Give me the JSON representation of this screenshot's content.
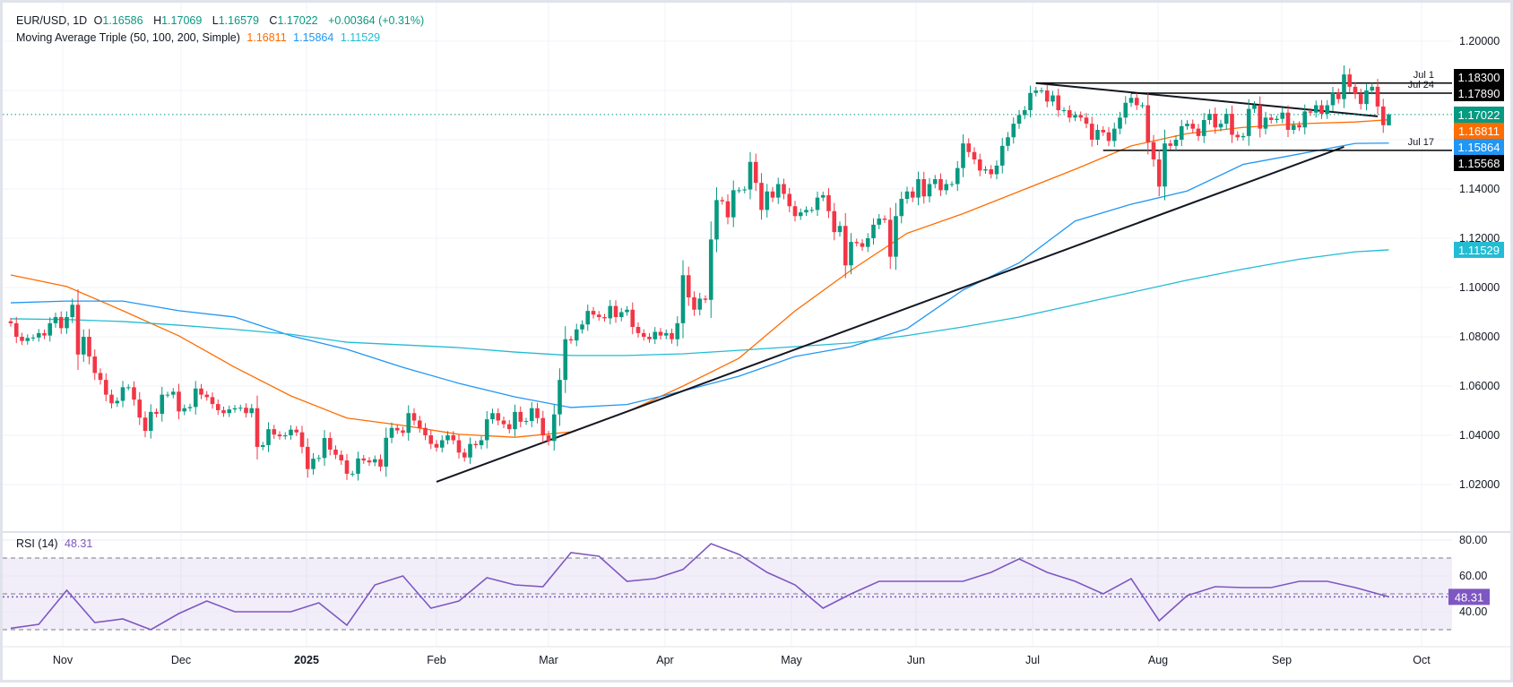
{
  "header": {
    "symbol": "EUR/USD, 1D",
    "o_label": "O",
    "o": "1.16586",
    "h_label": "H",
    "h": "1.17069",
    "l_label": "L",
    "l": "1.16579",
    "c_label": "C",
    "c": "1.17022",
    "change": "+0.00364 (+0.31%)"
  },
  "ma_legend": {
    "label": "Moving Average Triple (50, 100, 200, Simple)",
    "v50": "1.16811",
    "v100": "1.15864",
    "v200": "1.11529"
  },
  "rsi_legend": {
    "label": "RSI (14)",
    "value": "48.31"
  },
  "colors": {
    "up": "#089981",
    "down": "#f23645",
    "ma50": "#ff6d00",
    "ma100": "#2196f3",
    "ma200": "#22bcd4",
    "rsi": "#7e57c2",
    "trendline": "#131722",
    "level": "#000000"
  },
  "chart_data": [
    {
      "type": "candlestick",
      "title": "EUR/USD, 1D",
      "ylim": [
        1.0,
        1.217
      ],
      "grid": true,
      "y_ticks": [
        "1.20000",
        "1.14000",
        "1.12000",
        "1.10000",
        "1.08000",
        "1.06000",
        "1.04000",
        "1.02000"
      ],
      "x_ticks": [
        "Nov",
        "Dec",
        "2025",
        "Feb",
        "Mar",
        "Apr",
        "May",
        "Jun",
        "Jul",
        "Aug",
        "Sep",
        "Oct"
      ],
      "last": {
        "open": 1.16586,
        "high": 1.17069,
        "low": 1.16579,
        "close": 1.17022,
        "badge": "1.17022"
      },
      "close": [
        1.0855,
        1.08,
        1.0783,
        1.0795,
        1.0797,
        1.0815,
        1.0805,
        1.0855,
        1.088,
        1.0835,
        1.088,
        1.093,
        1.0728,
        1.08,
        1.072,
        1.0653,
        1.0625,
        1.0565,
        1.053,
        1.054,
        1.0595,
        1.0595,
        1.0545,
        1.0472,
        1.0418,
        1.0495,
        1.0487,
        1.0565,
        1.0565,
        1.0577,
        1.0497,
        1.051,
        1.0515,
        1.059,
        1.0565,
        1.0555,
        1.0527,
        1.0502,
        1.049,
        1.0505,
        1.051,
        1.0512,
        1.049,
        1.051,
        1.0353,
        1.036,
        1.0425,
        1.0403,
        1.0396,
        1.04,
        1.0423,
        1.0412,
        1.0353,
        1.0263,
        1.0305,
        1.0308,
        1.0389,
        1.0342,
        1.0321,
        1.0298,
        1.0244,
        1.0244,
        1.0306,
        1.0298,
        1.029,
        1.0303,
        1.0273,
        1.039,
        1.043,
        1.042,
        1.041,
        1.049,
        1.046,
        1.043,
        1.04,
        1.0365,
        1.035,
        1.038,
        1.04,
        1.038,
        1.033,
        1.031,
        1.0365,
        1.036,
        1.038,
        1.0465,
        1.049,
        1.046,
        1.0445,
        1.0425,
        1.0495,
        1.0455,
        1.0458,
        1.051,
        1.047,
        1.04,
        1.0377,
        1.0485,
        1.0625,
        1.079,
        1.0785,
        1.083,
        1.085,
        1.0905,
        1.089,
        1.088,
        1.0875,
        1.0925,
        1.088,
        1.09,
        1.091,
        1.084,
        1.0815,
        1.08,
        1.079,
        1.082,
        1.0805,
        1.0815,
        1.079,
        1.0855,
        1.105,
        1.096,
        1.091,
        1.0955,
        1.095,
        1.1195,
        1.1355,
        1.135,
        1.1285,
        1.1395,
        1.1395,
        1.1398,
        1.151,
        1.1425,
        1.1315,
        1.139,
        1.1365,
        1.142,
        1.138,
        1.133,
        1.129,
        1.1305,
        1.1315,
        1.1315,
        1.1365,
        1.1375,
        1.131,
        1.1225,
        1.125,
        1.109,
        1.1185,
        1.118,
        1.1165,
        1.12,
        1.1255,
        1.128,
        1.1275,
        1.1125,
        1.129,
        1.136,
        1.139,
        1.1365,
        1.144,
        1.137,
        1.142,
        1.144,
        1.1395,
        1.142,
        1.142,
        1.1485,
        1.1585,
        1.155,
        1.152,
        1.1475,
        1.148,
        1.146,
        1.1495,
        1.1575,
        1.161,
        1.1665,
        1.17,
        1.172,
        1.179,
        1.18,
        1.18,
        1.1755,
        1.178,
        1.172,
        1.172,
        1.169,
        1.17,
        1.169,
        1.1665,
        1.16,
        1.164,
        1.163,
        1.1595,
        1.1645,
        1.169,
        1.175,
        1.177,
        1.174,
        1.174,
        1.159,
        1.152,
        1.141,
        1.1585,
        1.1575,
        1.16,
        1.1655,
        1.1665,
        1.1645,
        1.1615,
        1.168,
        1.1705,
        1.165,
        1.1665,
        1.1705,
        1.162,
        1.161,
        1.1615,
        1.1725,
        1.174,
        1.1645,
        1.169,
        1.168,
        1.1685,
        1.171,
        1.164,
        1.166,
        1.165,
        1.1715,
        1.171,
        1.174,
        1.1705,
        1.174,
        1.179,
        1.1765,
        1.1865,
        1.1815,
        1.1785,
        1.1745,
        1.18,
        1.1815,
        1.1735,
        1.1659,
        1.17022
      ],
      "moving_averages": [
        {
          "name": "MA 50",
          "badge": "1.16811",
          "values": [
            1.1051,
            1.1004,
            1.0906,
            1.0804,
            1.0676,
            1.056,
            1.047,
            1.044,
            1.0404,
            1.0392,
            1.0414,
            1.0495,
            1.06,
            1.0713,
            1.0905,
            1.107,
            1.122,
            1.13,
            1.139,
            1.148,
            1.1575,
            1.1625,
            1.165,
            1.1665,
            1.1672,
            1.16811
          ]
        },
        {
          "name": "MA 100",
          "badge": "1.15864",
          "values": [
            1.0938,
            1.0945,
            1.0945,
            1.0906,
            1.088,
            1.0804,
            1.0749,
            1.0676,
            1.0611,
            1.0556,
            1.0513,
            1.0525,
            1.058,
            1.064,
            1.072,
            1.076,
            1.0833,
            1.099,
            1.11,
            1.127,
            1.1338,
            1.1392,
            1.15,
            1.1542,
            1.1585,
            1.15864
          ]
        },
        {
          "name": "MA 200",
          "badge": "1.11529",
          "values": [
            1.0873,
            1.087,
            1.0862,
            1.0847,
            1.083,
            1.081,
            1.0778,
            1.0767,
            1.0756,
            1.0738,
            1.0724,
            1.0724,
            1.0731,
            1.0745,
            1.076,
            1.0775,
            1.0805,
            1.084,
            1.088,
            1.093,
            1.098,
            1.103,
            1.1075,
            1.1115,
            1.1145,
            1.11529
          ]
        }
      ],
      "levels": [
        {
          "label": "Jul 1",
          "value": 1.183,
          "badge": "1.18300"
        },
        {
          "label": "Jul 24",
          "value": 1.1789,
          "badge": "1.17890"
        },
        {
          "label": "Jul 17",
          "value": 1.15568,
          "badge": "1.15568"
        }
      ],
      "trendlines": [
        {
          "from": [
            76,
            1.0211
          ],
          "to": [
            238,
            1.1571
          ]
        },
        {
          "from": [
            183,
            1.183
          ],
          "to": [
            244,
            1.1695
          ]
        }
      ]
    },
    {
      "type": "line",
      "title": "RSI (14)",
      "ylim": [
        20,
        85
      ],
      "y_ticks": [
        "80.00",
        "60.00",
        "40.00"
      ],
      "bands": [
        30,
        50,
        70
      ],
      "badge": "48.31",
      "values": [
        30.8,
        33,
        52,
        34,
        36,
        30,
        39,
        46,
        40,
        40,
        40,
        45,
        32.5,
        55,
        60,
        42,
        46,
        59,
        55,
        54,
        73,
        71,
        57,
        58.5,
        63.6,
        78,
        72,
        62,
        55,
        42,
        50,
        57,
        57,
        57,
        57,
        62,
        69.5,
        62,
        57,
        50,
        58.5,
        35,
        49,
        54,
        53.5,
        53.5,
        57,
        57,
        53.5,
        48.31
      ]
    }
  ]
}
